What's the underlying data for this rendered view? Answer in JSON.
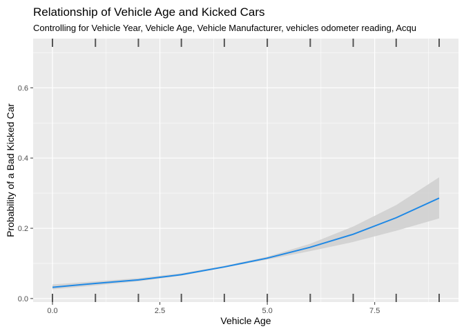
{
  "chart_data": {
    "type": "line",
    "title": "Relationship of Vehicle Age and Kicked Cars",
    "subtitle": "Controlling for Vehicle Year, Vehicle Age, Vehicle Manufacturer, vehicles odometer reading, Acqu",
    "xlabel": "Vehicle Age",
    "ylabel": "Probability of a Bad Kicked Car",
    "xlim": [
      -0.45,
      9.45
    ],
    "ylim": [
      -0.01,
      0.74
    ],
    "x_ticks": [
      0.0,
      2.5,
      5.0,
      7.5
    ],
    "x_tick_labels": [
      "0.0",
      "2.5",
      "5.0",
      "7.5"
    ],
    "y_ticks": [
      0.0,
      0.2,
      0.4,
      0.6
    ],
    "y_tick_labels": [
      "0.0",
      "0.2",
      "0.4",
      "0.6"
    ],
    "grid": true,
    "rug_x": [
      0,
      1,
      2,
      3,
      4,
      5,
      6,
      7,
      8,
      9
    ],
    "series": [
      {
        "x": [
          0,
          1,
          2,
          3,
          4,
          5,
          6,
          7,
          8,
          9
        ],
        "y": [
          0.032,
          0.043,
          0.053,
          0.068,
          0.09,
          0.115,
          0.146,
          0.183,
          0.23,
          0.286
        ],
        "ci_lower": [
          0.026,
          0.037,
          0.049,
          0.065,
          0.088,
          0.111,
          0.135,
          0.161,
          0.193,
          0.228
        ],
        "ci_upper": [
          0.04,
          0.049,
          0.058,
          0.072,
          0.093,
          0.119,
          0.156,
          0.205,
          0.266,
          0.345
        ],
        "color": "#1e88e5",
        "ci_color": "#d0d0d0"
      }
    ],
    "panel_background": "#ebebeb",
    "grid_color": "#ffffff"
  }
}
